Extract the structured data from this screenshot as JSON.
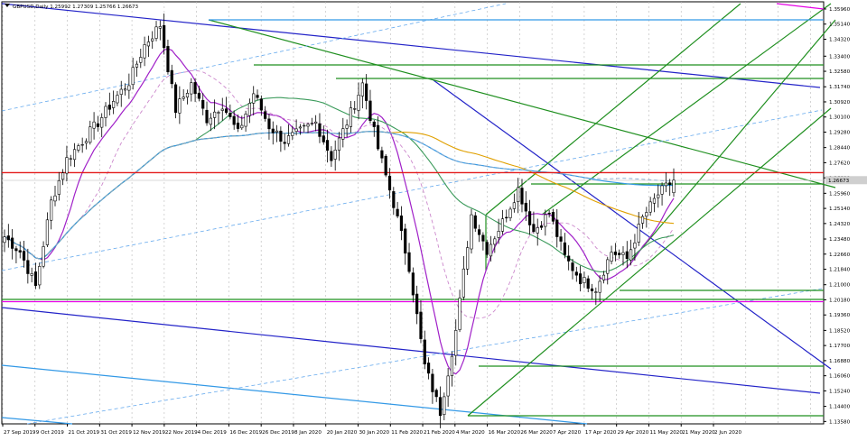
{
  "symbol_line": "GBPUSD,Daily  1.25992 1.27309 1.25766 1.26673",
  "last_price": "1.26673",
  "chart_data": {
    "type": "candlestick",
    "symbol": "GBPUSD",
    "timeframe": "Daily",
    "ohlc_last": {
      "open": 1.25992,
      "high": 1.27309,
      "low": 1.25766,
      "close": 1.26673
    },
    "ylim": [
      1.1345,
      1.3635
    ],
    "y_ticks": [
      "1.35960",
      "1.35140",
      "1.34320",
      "1.33400",
      "1.32580",
      "1.31740",
      "1.30920",
      "1.30100",
      "1.29280",
      "1.28440",
      "1.27620",
      "1.26800",
      "1.25960",
      "1.25140",
      "1.24320",
      "1.23480",
      "1.22660",
      "1.21840",
      "1.21000",
      "1.20180",
      "1.19360",
      "1.18520",
      "1.17700",
      "1.16880",
      "1.16060",
      "1.15240",
      "1.14400",
      "1.13580"
    ],
    "x_labels": [
      "27 Sep 2019",
      "9 Oct 2019",
      "21 Oct 2019",
      "31 Oct 2019",
      "12 Nov 2019",
      "22 Nov 2019",
      "4 Dec 2019",
      "16 Dec 2019",
      "26 Dec 2019",
      "8 Jan 2020",
      "20 Jan 2020",
      "30 Jan 2020",
      "11 Feb 2020",
      "21 Feb 2020",
      "4 Mar 2020",
      "16 Mar 2020",
      "26 Mar 2020",
      "7 Apr 2020",
      "17 Apr 2020",
      "29 Apr 2020",
      "11 May 2020",
      "21 May 2020",
      "2 Jun 2020"
    ],
    "grid": true,
    "horizontal_levels": [
      {
        "price": 1.2708,
        "color": "#e31a1a"
      },
      {
        "price": 1.2008,
        "color": "#e600e6"
      }
    ],
    "key_path": [
      1.236,
      1.228,
      1.209,
      1.255,
      1.278,
      1.288,
      1.298,
      1.31,
      1.32,
      1.34,
      1.351,
      1.305,
      1.319,
      1.3,
      1.308,
      1.292,
      1.314,
      1.296,
      1.288,
      1.293,
      1.298,
      1.279,
      1.298,
      1.319,
      1.284,
      1.254,
      1.22,
      1.166,
      1.141,
      1.185,
      1.248,
      1.229,
      1.244,
      1.262,
      1.239,
      1.249,
      1.225,
      1.213,
      1.208,
      1.228,
      1.224,
      1.246,
      1.259,
      1.2667
    ]
  }
}
